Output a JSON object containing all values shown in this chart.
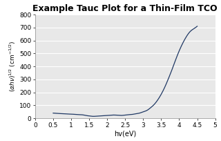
{
  "title": "Example Tauc Plot for a Thin-Film TCO",
  "xlabel": "hv(eV)",
  "ylabel": "(αhv)¹ⁿ² (cm⁻¹ⁿ²)",
  "xlim": [
    0,
    5
  ],
  "ylim": [
    0,
    800
  ],
  "xticks": [
    0,
    0.5,
    1,
    1.5,
    2,
    2.5,
    3,
    3.5,
    4,
    4.5,
    5
  ],
  "yticks": [
    0,
    100,
    200,
    300,
    400,
    500,
    600,
    700,
    800
  ],
  "line_color": "#1F3864",
  "bg_color": "#E8E8E8",
  "title_fontsize": 9,
  "label_fontsize": 7,
  "tick_fontsize": 6.5,
  "curve_hv": [
    0.5,
    0.6,
    0.7,
    0.8,
    0.9,
    1.0,
    1.1,
    1.2,
    1.3,
    1.35,
    1.4,
    1.5,
    1.6,
    1.7,
    1.8,
    1.9,
    2.0,
    2.1,
    2.2,
    2.3,
    2.4,
    2.5,
    2.6,
    2.7,
    2.8,
    2.9,
    3.0,
    3.1,
    3.2,
    3.3,
    3.4,
    3.5,
    3.6,
    3.7,
    3.8,
    3.9,
    4.0,
    4.1,
    4.2,
    4.3,
    4.4,
    4.5
  ],
  "curve_y": [
    40,
    38,
    36,
    35,
    33,
    32,
    30,
    28,
    27,
    25,
    22,
    18,
    15,
    16,
    18,
    20,
    22,
    24,
    25,
    23,
    22,
    25,
    28,
    30,
    35,
    40,
    50,
    60,
    80,
    105,
    140,
    185,
    240,
    305,
    375,
    450,
    520,
    580,
    630,
    668,
    690,
    710
  ]
}
